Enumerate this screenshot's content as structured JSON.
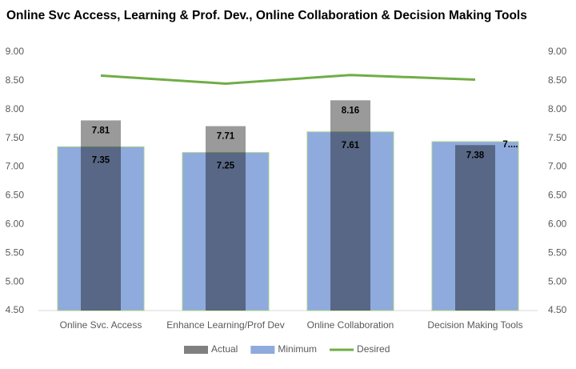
{
  "chart_data": {
    "type": "bar",
    "title": "Online Svc Access, Learning & Prof. Dev., Online Collaboration & Decision Making Tools",
    "categories": [
      "Online Svc. Access",
      "Enhance Learning/Prof Dev",
      "Online Collaboration",
      "Decision Making Tools"
    ],
    "series": [
      {
        "name": "Actual",
        "color": "#9a9a9a",
        "values": [
          7.81,
          7.71,
          8.16,
          7.38
        ]
      },
      {
        "name": "Minimum",
        "color": "#8faadc",
        "values": [
          7.35,
          7.25,
          7.61,
          7.44
        ],
        "value_labels": [
          "7.35",
          "7.25",
          "7.61",
          "7...."
        ]
      },
      {
        "name": "Desired",
        "color": "#70ad47",
        "axis": "y2",
        "values": [
          8.59,
          8.45,
          8.6,
          8.52
        ]
      }
    ],
    "ylim": [
      4.5,
      9
    ],
    "yticks": [
      {
        "value": 4.5,
        "label": "4.50"
      },
      {
        "value": 5,
        "label": "5.00"
      },
      {
        "value": 5.5,
        "label": "5.50"
      },
      {
        "value": 6,
        "label": "6.00"
      },
      {
        "value": 6.5,
        "label": "6.50"
      },
      {
        "value": 7,
        "label": "7.00"
      },
      {
        "value": 7.5,
        "label": "7.50"
      },
      {
        "value": 8,
        "label": "8.00"
      },
      {
        "value": 8.5,
        "label": "8.50"
      },
      {
        "value": 9,
        "label": "9.00"
      }
    ],
    "y2lim": [
      4.5,
      9
    ],
    "y2ticks": [
      {
        "value": 4.5,
        "label": "4.50"
      },
      {
        "value": 5,
        "label": "5.00"
      },
      {
        "value": 5.5,
        "label": "5.50"
      },
      {
        "value": 6,
        "label": "6.00"
      },
      {
        "value": 6.5,
        "label": "6.50"
      },
      {
        "value": 7,
        "label": "7.00"
      },
      {
        "value": 7.5,
        "label": "7.50"
      },
      {
        "value": 8,
        "label": "8.00"
      },
      {
        "value": 8.5,
        "label": "8.50"
      },
      {
        "value": 9,
        "label": "9.00"
      }
    ],
    "grid": false
  }
}
